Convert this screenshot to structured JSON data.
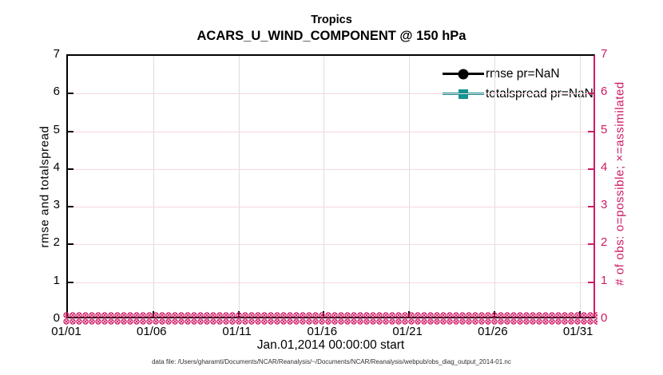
{
  "chart_data": {
    "type": "line",
    "title": "Tropics",
    "subtitle": "ACARS_U_WIND_COMPONENT @ 150 hPa",
    "xlabel": "Jan.01,2014 00:00:00 start",
    "ylabel_left": "rmse and totalspread",
    "ylabel_right": "# of obs: o=possible; ×=assimilated",
    "caption": "data file: /Users/gharamti/Documents/NCAR/Reanalysis/~/Documents/NCAR/Reanalysis/webpub/obs_diag_output_2014-01.nc",
    "x_axis": {
      "tick_labels": [
        "01/01",
        "01/06",
        "01/11",
        "01/16",
        "01/21",
        "01/26",
        "01/31"
      ],
      "tick_days": [
        0,
        5,
        10,
        15,
        20,
        25,
        30
      ],
      "total_days": 31,
      "start": "Jan 01 2014 00:00:00"
    },
    "y_axis_left": {
      "label": "rmse and totalspread",
      "ticks": [
        0,
        1,
        2,
        3,
        4,
        5,
        6,
        7
      ],
      "range": [
        0,
        7
      ],
      "color": "#000000"
    },
    "y_axis_right": {
      "label": "# of obs: o=possible; ×=assimilated",
      "ticks": [
        0,
        1,
        2,
        3,
        4,
        5,
        6,
        7
      ],
      "range": [
        0,
        7
      ],
      "color": "#CE1A66"
    },
    "series": [
      {
        "name": "rmse pr=NaN",
        "color": "#000000",
        "marker": "circle",
        "values": "NaN"
      },
      {
        "name": "totalspread pr=NaN",
        "color": "#139390",
        "marker": "square",
        "values": "NaN"
      }
    ],
    "obs_markers": {
      "possible_symbol": "o",
      "assimilated_symbol": "×",
      "color": "#CE1A66",
      "y_value": 0,
      "extent": "dense overlapping o and × markers at y=0 from 01/01 to end of axis (all counts 0)"
    },
    "legend": {
      "position": "top-right inside plot, no box",
      "entries": [
        "rmse pr=NaN",
        "totalspread pr=NaN"
      ]
    },
    "grid": {
      "horizontal_color": "#F6D7E2",
      "vertical_color": "#E2DCDC"
    }
  }
}
